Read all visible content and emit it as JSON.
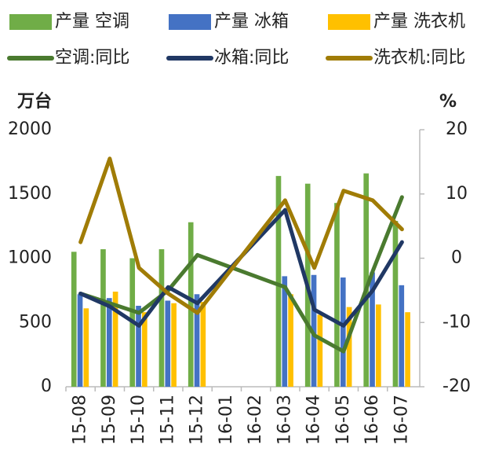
{
  "chart_data": {
    "type": "bar-line",
    "ylabel": "万台",
    "y2label": "%",
    "categories": [
      "15-08",
      "15-09",
      "15-10",
      "15-11",
      "15-12",
      "16-01",
      "16-02",
      "16-03",
      "16-04",
      "16-05",
      "16-06",
      "16-07"
    ],
    "series": [
      {
        "name": "产量 空调",
        "color": "#70ad47",
        "kind": "bar",
        "values": [
          1050,
          1070,
          1000,
          1070,
          1280,
          null,
          null,
          1640,
          1580,
          1430,
          1660,
          1290
        ]
      },
      {
        "name": "产量 冰箱",
        "color": "#4472c4",
        "kind": "bar",
        "values": [
          720,
          690,
          630,
          670,
          720,
          null,
          null,
          860,
          870,
          850,
          890,
          790
        ]
      },
      {
        "name": "产量 洗衣机",
        "color": "#ffc000",
        "kind": "bar",
        "values": [
          610,
          740,
          580,
          650,
          660,
          null,
          null,
          720,
          560,
          620,
          640,
          580
        ]
      },
      {
        "name": "空调:同比",
        "color": "#4a7a2f",
        "kind": "line",
        "axis": "y2",
        "values": [
          -5.5,
          -7,
          -8.5,
          -5,
          0.5,
          null,
          null,
          -4.5,
          -12,
          -14.5,
          -2,
          9.5
        ]
      },
      {
        "name": "冰箱:同比",
        "color": "#203864",
        "kind": "line",
        "axis": "y2",
        "values": [
          -5.5,
          -7.5,
          -10.5,
          -4.5,
          -7,
          null,
          null,
          7.5,
          -8,
          -10.5,
          -5,
          2.5
        ]
      },
      {
        "name": "洗衣机:同比",
        "color": "#a07c06",
        "kind": "line",
        "axis": "y2",
        "values": [
          2.5,
          15.5,
          -1.5,
          -5.5,
          -8.5,
          null,
          null,
          9,
          -1.5,
          10.5,
          9,
          4.5
        ]
      }
    ],
    "ylim": [
      0,
      2000
    ],
    "yticks": [
      0,
      500,
      1000,
      1500,
      2000
    ],
    "y2lim": [
      -20,
      20
    ],
    "y2ticks": [
      -20,
      -10,
      0,
      10,
      20
    ],
    "negative_color": "#ff0000",
    "span_gaps": true
  }
}
